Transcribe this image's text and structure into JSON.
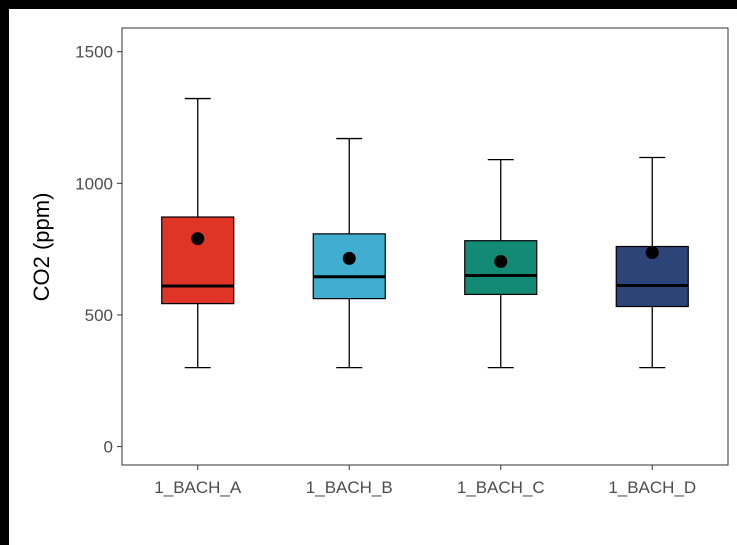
{
  "chart_data": {
    "type": "boxplot",
    "title": "",
    "xlabel": "",
    "ylabel": "CO2 (ppm)",
    "ylim": [
      -70,
      1590
    ],
    "yticks": [
      0,
      500,
      1000,
      1500
    ],
    "grid": false,
    "legend": "none",
    "categories": [
      "1_BACH_A",
      "1_BACH_B",
      "1_BACH_C",
      "1_BACH_D"
    ],
    "boxes": [
      {
        "name": "1_BACH_A",
        "whisker_low": 300,
        "q1": 543,
        "median": 610,
        "q3": 872,
        "whisker_high": 1322,
        "mean": 790,
        "color": "#DE3527"
      },
      {
        "name": "1_BACH_B",
        "whisker_low": 300,
        "q1": 562,
        "median": 645,
        "q3": 808,
        "whisker_high": 1170,
        "mean": 715,
        "color": "#41AECF"
      },
      {
        "name": "1_BACH_C",
        "whisker_low": 300,
        "q1": 578,
        "median": 650,
        "q3": 782,
        "whisker_high": 1090,
        "mean": 703,
        "color": "#138A73"
      },
      {
        "name": "1_BACH_D",
        "whisker_low": 300,
        "q1": 532,
        "median": 612,
        "q3": 760,
        "whisker_high": 1098,
        "mean": 737,
        "color": "#2C4478"
      }
    ]
  }
}
